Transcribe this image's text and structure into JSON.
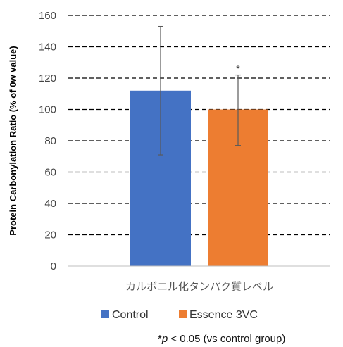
{
  "chart_data": {
    "type": "bar",
    "categories": [
      "カルボニル化タンパク質レベル"
    ],
    "series": [
      {
        "name": "Control",
        "values": [
          112
        ],
        "error_low": [
          71
        ],
        "error_high": [
          153
        ],
        "color": "#4472C4"
      },
      {
        "name": "Essence 3VC",
        "values": [
          100
        ],
        "error_low": [
          77
        ],
        "error_high": [
          122
        ],
        "color": "#ED7D31",
        "significance": "*"
      }
    ],
    "title": "",
    "xlabel": "",
    "ylabel": "Protein Carbonylation Ratio  (% of 0w value)",
    "ylim": [
      0,
      160
    ],
    "yticks": [
      "0",
      "20",
      "40",
      "60",
      "80",
      "100",
      "120",
      "140",
      "160"
    ],
    "grid": "dashed horizontal",
    "legend_position": "bottom",
    "footnote": {
      "star": "*",
      "p": "p",
      "rest": " < 0.05 (vs control group)"
    }
  }
}
